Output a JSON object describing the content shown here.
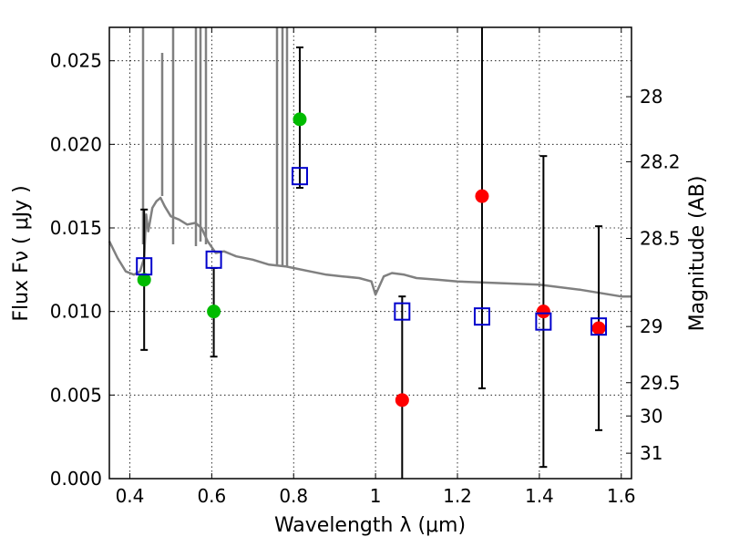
{
  "chart_data": {
    "type": "scatter",
    "xlabel": "Wavelength  λ (μm)",
    "ylabel": "Flux  Fν  ( μJy )",
    "y2label": "Magnitude (AB)",
    "xlim": [
      0.35,
      1.625
    ],
    "ylim": [
      0.0,
      0.027
    ],
    "xticks": [
      0.4,
      0.6,
      0.8,
      1.0,
      1.2,
      1.4,
      1.6
    ],
    "xtick_labels": [
      "0.4",
      "0.6",
      "0.8",
      "1",
      "1.2",
      "1.4",
      "1.6"
    ],
    "yticks": [
      0.0,
      0.005,
      0.01,
      0.015,
      0.02,
      0.025
    ],
    "ytick_labels": [
      "0.000",
      "0.005",
      "0.010",
      "0.015",
      "0.020",
      "0.025"
    ],
    "y2ticks": [
      {
        "label": "28",
        "flux": 0.02285
      },
      {
        "label": "28.2",
        "flux": 0.01896
      },
      {
        "label": "28.5",
        "flux": 0.01437
      },
      {
        "label": "29",
        "flux": 0.0091
      },
      {
        "label": "29.5",
        "flux": 0.00574
      },
      {
        "label": "30",
        "flux": 0.00375
      },
      {
        "label": "31",
        "flux": 0.00152
      }
    ],
    "grid": true,
    "series": [
      {
        "name": "model-spectrum",
        "kind": "line",
        "color": "#808080",
        "x": [
          0.35,
          0.37,
          0.39,
          0.41,
          0.425,
          0.435,
          0.44,
          0.445,
          0.455,
          0.465,
          0.475,
          0.485,
          0.5,
          0.52,
          0.54,
          0.56,
          0.575,
          0.59,
          0.61,
          0.63,
          0.66,
          0.7,
          0.74,
          0.78,
          0.8,
          0.84,
          0.88,
          0.92,
          0.96,
          0.99,
          1.0,
          1.02,
          1.04,
          1.07,
          1.1,
          1.15,
          1.2,
          1.3,
          1.4,
          1.5,
          1.6,
          1.625
        ],
        "y": [
          0.0142,
          0.0132,
          0.0124,
          0.0122,
          0.0124,
          0.0132,
          0.0158,
          0.0148,
          0.0162,
          0.0166,
          0.0168,
          0.0163,
          0.0157,
          0.0155,
          0.0152,
          0.0153,
          0.015,
          0.0142,
          0.0135,
          0.0136,
          0.0133,
          0.0131,
          0.0128,
          0.0127,
          0.0126,
          0.0124,
          0.0122,
          0.0121,
          0.012,
          0.0118,
          0.011,
          0.0121,
          0.0123,
          0.0122,
          0.012,
          0.0119,
          0.0118,
          0.0117,
          0.0116,
          0.0113,
          0.0109,
          0.0109
        ]
      },
      {
        "name": "observed-green",
        "kind": "marker",
        "marker": "circle",
        "color": "#00bb00",
        "x": [
          0.435,
          0.605,
          0.815
        ],
        "y": [
          0.0119,
          0.01,
          0.0215
        ]
      },
      {
        "name": "observed-red",
        "kind": "marker",
        "marker": "circle",
        "color": "#ff0000",
        "x": [
          1.065,
          1.26,
          1.41,
          1.545
        ],
        "y": [
          0.0047,
          0.0169,
          0.01,
          0.009
        ]
      },
      {
        "name": "model-photometry",
        "kind": "marker",
        "marker": "open-square",
        "color": "#0000cc",
        "x": [
          0.435,
          0.605,
          0.815,
          1.065,
          1.26,
          1.41,
          1.545
        ],
        "y": [
          0.0127,
          0.0131,
          0.0181,
          0.01,
          0.0097,
          0.0094,
          0.0091
        ]
      },
      {
        "name": "error-bars",
        "kind": "errorbar",
        "color": "#000000",
        "x": [
          0.435,
          0.605,
          0.815,
          1.065,
          1.26,
          1.41,
          1.545
        ],
        "ylow": [
          0.0077,
          0.0073,
          0.0174,
          0.0,
          0.0054,
          0.0007,
          0.0029
        ],
        "yhigh": [
          0.0161,
          0.0126,
          0.0258,
          0.0109,
          0.027,
          0.0193,
          0.0151
        ]
      }
    ]
  }
}
